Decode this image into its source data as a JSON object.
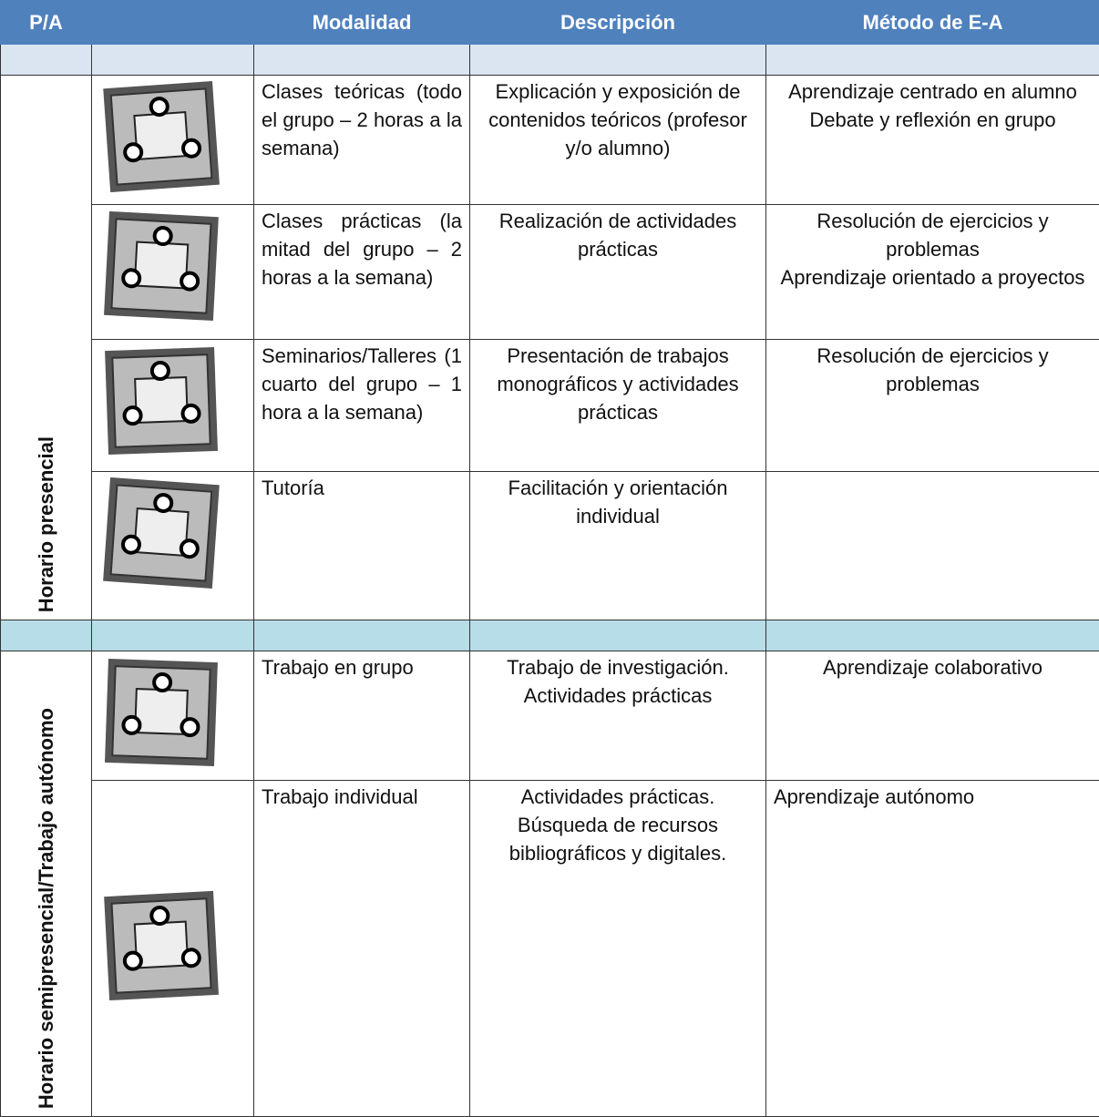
{
  "header": [
    "P/A",
    "Modalidad",
    "Descripción",
    "Método de E-A"
  ],
  "groups": [
    {
      "label": "Horario presencial",
      "rows": [
        {
          "modalidad": "Clases teóricas (todo el grupo – 2 horas a la semana)",
          "descripcion": [
            "Explicación y exposición de contenidos teóricos (profesor y/o alumno)"
          ],
          "metodo": [
            "Aprendizaje centrado en alumno",
            "Debate y reflexión en grupo"
          ]
        },
        {
          "modalidad": "Clases prácticas (la mitad del grupo – 2 horas a la semana)",
          "descripcion": [
            "Realización de actividades prácticas"
          ],
          "metodo": [
            "Resolución de ejercicios y problemas",
            "Aprendizaje orientado a proyectos"
          ]
        },
        {
          "modalidad": "Seminarios/Talleres (1 cuarto del grupo – 1 hora a la semana)",
          "descripcion": [
            "Presentación de trabajos monográficos y actividades prácticas"
          ],
          "metodo": [
            "Resolución de ejercicios y problemas"
          ]
        },
        {
          "modalidad": "Tutoría",
          "descripcion": [
            "Facilitación y orientación individual"
          ],
          "metodo": []
        }
      ]
    },
    {
      "label": "Horario semipresencial/Trabajo autónomo",
      "rows": [
        {
          "modalidad": "Trabajo en grupo",
          "descripcion": [
            "Trabajo de investigación.",
            "Actividades prácticas"
          ],
          "metodo": [
            "Aprendizaje colaborativo"
          ]
        },
        {
          "modalidad": "Trabajo individual",
          "descripcion": [
            "Actividades prácticas.",
            "Búsqueda de recursos bibliográficos y digitales."
          ],
          "metodo": [
            "Aprendizaje autónomo"
          ]
        }
      ]
    }
  ]
}
